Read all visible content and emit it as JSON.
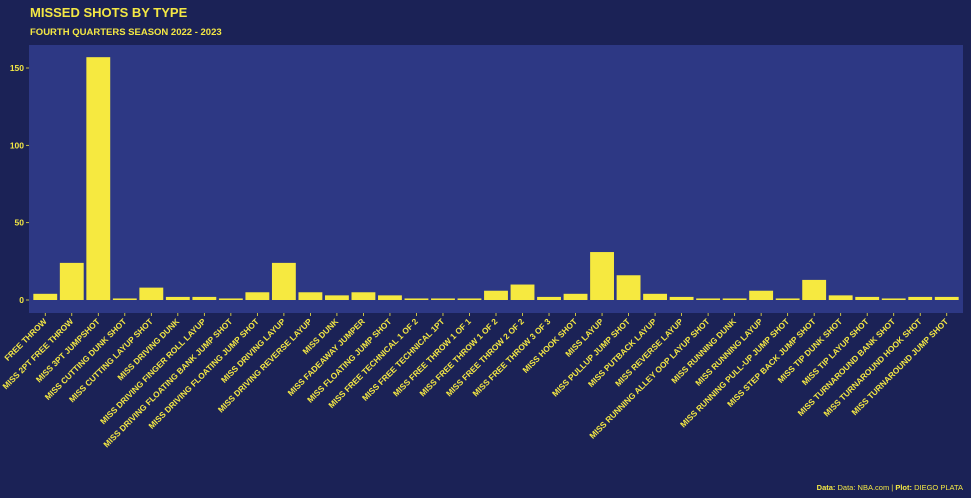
{
  "colors": {
    "background": "#1b2256",
    "panel": "#2d3884",
    "bar": "#f6e940",
    "text": "#f4e844"
  },
  "caption": {
    "data_label": "Data:",
    "data_value": "Data: NBA.com",
    "separator": " | ",
    "plot_label": "Plot:",
    "plot_value": "DIEGO PLATA"
  },
  "chart_data": {
    "type": "bar",
    "title": "MISSED SHOTS BY TYPE",
    "subtitle": "FOURTH QUARTERS SEASON 2022 - 2023",
    "xlabel": "",
    "ylabel": "",
    "ylim": [
      0,
      163
    ],
    "yticks": [
      0,
      50,
      100,
      150
    ],
    "grid": false,
    "categories": [
      "FREE THROW",
      "MISS 2PT FREE THROW",
      "MISS 3PT JUMPSHOT",
      "MISS CUTTING DUNK SHOT",
      "MISS CUTTING LAYUP SHOT",
      "MISS DRIVING DUNK",
      "MISS DRIVING FINGER ROLL LAYUP",
      "MISS DRIVING FLOATING BANK JUMP SHOT",
      "MISS DRIVING FLOATING JUMP SHOT",
      "MISS DRIVING LAYUP",
      "MISS DRIVING REVERSE LAYUP",
      "MISS DUNK",
      "MISS FADEAWAY JUMPER",
      "MISS FLOATING JUMP SHOT",
      "MISS FREE TECHNICAL 1 OF 2",
      "MISS FREE TECHNICAL 1PT",
      "MISS FREE THROW 1 OF 1",
      "MISS FREE THROW 1 OF 2",
      "MISS FREE THROW 2 OF 2",
      "MISS FREE THROW 3 OF 3",
      "MISS HOOK SHOT",
      "MISS LAYUP",
      "MISS PULLUP JUMP SHOT",
      "MISS PUTBACK LAYUP",
      "MISS REVERSE LAYUP",
      "MISS RUNNING ALLEY OOP LAYUP SHOT",
      "MISS RUNNING DUNK",
      "MISS RUNNING LAYUP",
      "MISS RUNNING PULL-UP JUMP SHOT",
      "MISS STEP BACK JUMP SHOT",
      "MISS TIP DUNK SHOT",
      "MISS TIP LAYUP SHOT",
      "MISS TURNAROUND BANK SHOT",
      "MISS TURNAROUND HOOK SHOT",
      "MISS TURNAROUND JUMP SHOT"
    ],
    "values": [
      4,
      24,
      157,
      1,
      8,
      2,
      2,
      1,
      5,
      24,
      5,
      3,
      5,
      3,
      1,
      1,
      1,
      6,
      10,
      2,
      4,
      31,
      16,
      4,
      2,
      1,
      1,
      6,
      1,
      13,
      3,
      2,
      1,
      2,
      2
    ]
  }
}
